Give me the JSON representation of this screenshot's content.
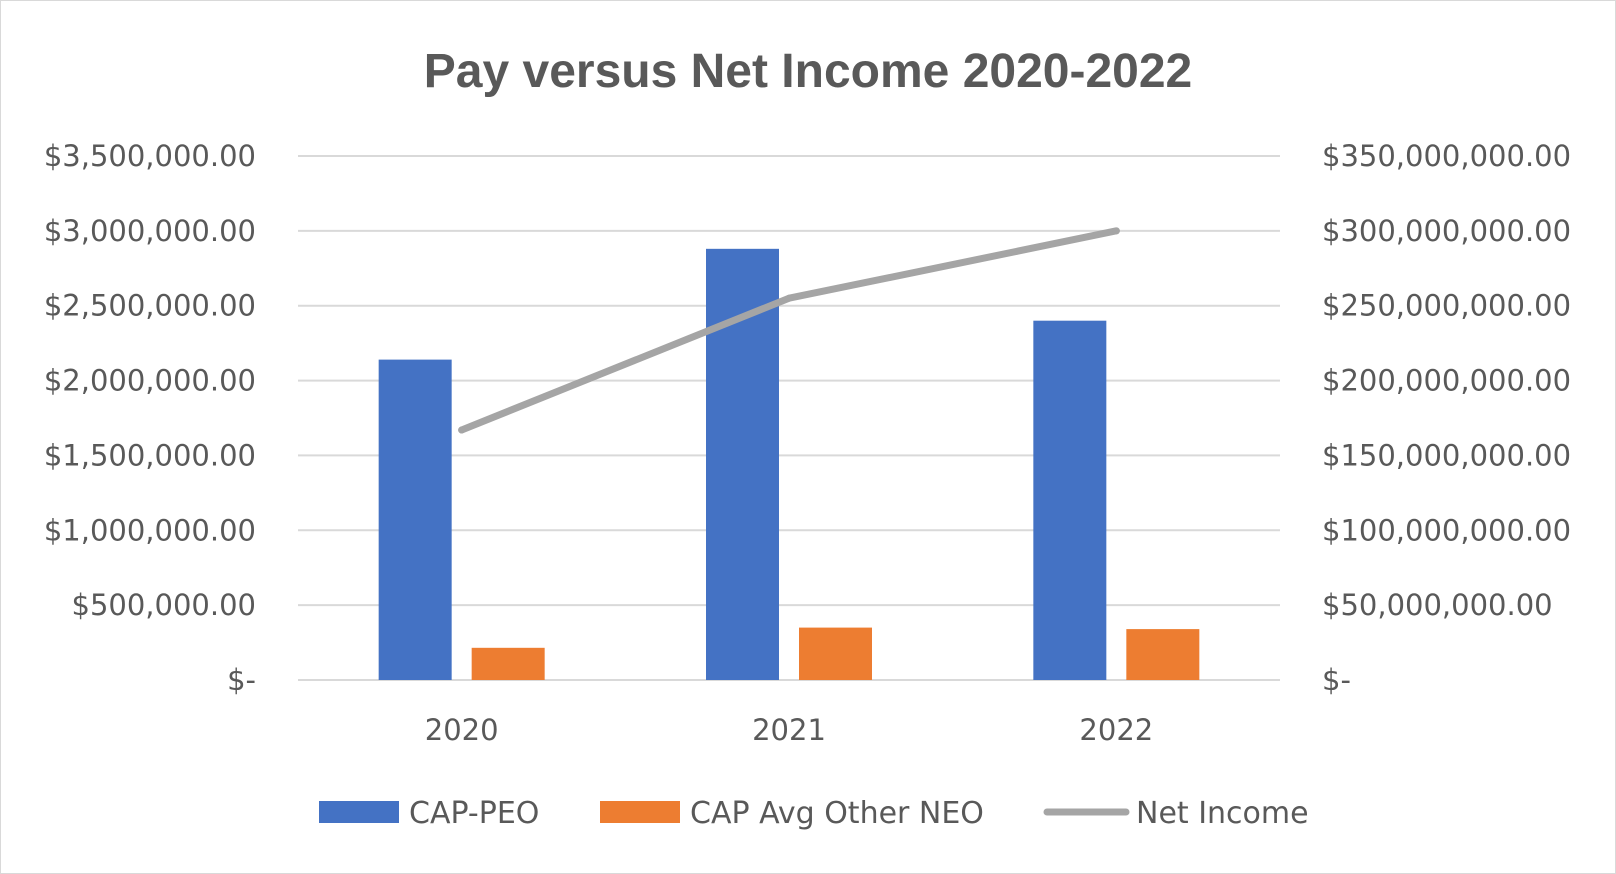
{
  "chart_data": {
    "type": "bar",
    "title": "Pay versus Net Income 2020-2022",
    "categories": [
      "2020",
      "2021",
      "2022"
    ],
    "y_left": {
      "min": 0,
      "max": 3500000,
      "step": 500000,
      "tick_labels": [
        "$-",
        "$500,000.00",
        "$1,000,000.00",
        "$1,500,000.00",
        "$2,000,000.00",
        "$2,500,000.00",
        "$3,000,000.00",
        "$3,500,000.00"
      ]
    },
    "y_right": {
      "min": 0,
      "max": 350000000,
      "step": 50000000,
      "tick_labels": [
        "$-",
        "$50,000,000.00",
        "$100,000,000.00",
        "$150,000,000.00",
        "$200,000,000.00",
        "$250,000,000.00",
        "$300,000,000.00",
        "$350,000,000.00"
      ]
    },
    "grid": true,
    "legend_position": "bottom",
    "series": [
      {
        "name": "CAP-PEO",
        "type": "bar",
        "axis": "left",
        "color": "#4472c4",
        "values": [
          2140000,
          2880000,
          2400000
        ]
      },
      {
        "name": "CAP Avg Other NEO",
        "type": "bar",
        "axis": "left",
        "color": "#ed7d31",
        "values": [
          215000,
          350000,
          340000
        ]
      },
      {
        "name": "Net Income",
        "type": "line",
        "axis": "right",
        "color": "#a5a5a5",
        "values": [
          167000000,
          255000000,
          300000000
        ]
      }
    ]
  }
}
